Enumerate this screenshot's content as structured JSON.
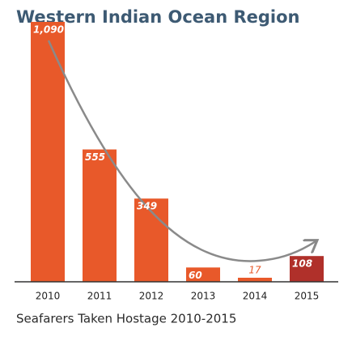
{
  "chart_data": {
    "type": "bar",
    "title": "Western Indian Ocean Region",
    "subtitle": "Seafarers Taken Hostage 2010-2015",
    "categories": [
      "2010",
      "2011",
      "2012",
      "2013",
      "2014",
      "2015"
    ],
    "values": [
      1090,
      555,
      349,
      60,
      17,
      108
    ],
    "value_labels": [
      "1,090",
      "555",
      "349",
      "60",
      "17",
      "108"
    ],
    "colors": [
      "#e8592a",
      "#e8592a",
      "#e8592a",
      "#e8592a",
      "#e8592a",
      "#b0302a"
    ]
  }
}
